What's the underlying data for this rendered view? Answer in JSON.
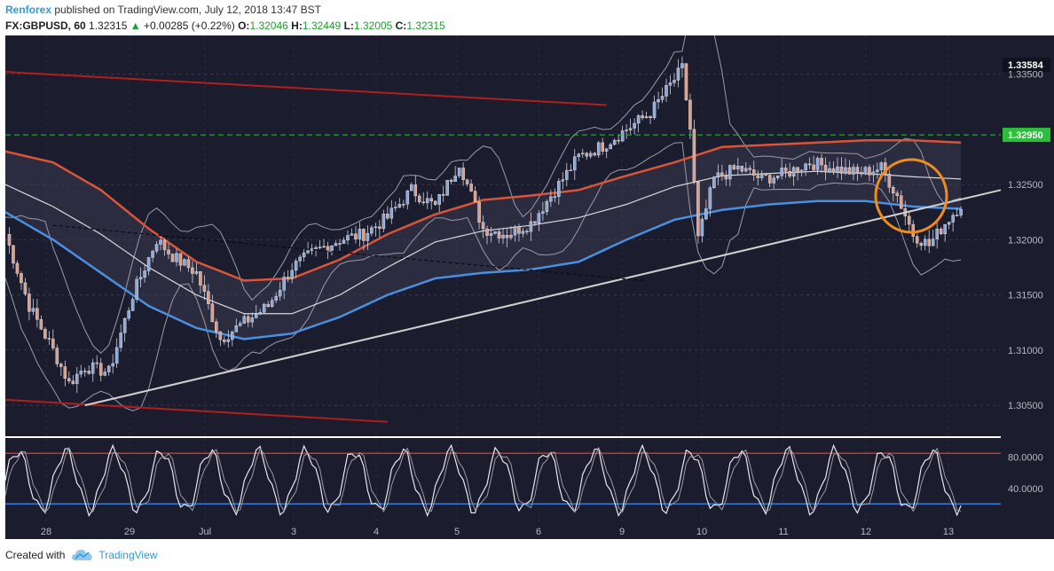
{
  "header": {
    "user": "Renforex",
    "published": "published on TradingView.com, July 12, 2018 13:47 BST",
    "symbol": "FX:GBPUSD, 60",
    "last": "1.32315",
    "change": "+0.00285 (+0.22%)",
    "o_label": "O:",
    "o_value": "1.32046",
    "h_label": "H:",
    "h_value": "1.32449",
    "l_label": "L:",
    "l_value": "1.32005",
    "c_label": "C:",
    "c_value": "1.32315"
  },
  "footer": {
    "created_with": "Created with",
    "brand": "TradingView"
  },
  "colors": {
    "background": "#1b1c2d",
    "bull": "#8ea9d6",
    "bear": "#d9a08c",
    "ma_red": "#d9553a",
    "ma_blue": "#4a8fe0",
    "ma_white": "#d8d8d8",
    "trendline_red": "#b01e1e",
    "support_line": "#d0d0d0",
    "highlight_circle": "#f08c1a",
    "level_green": "#2bbf3a",
    "stoch_upper": "#c0392b",
    "stoch_lower": "#3d7fe0"
  },
  "chart_data": {
    "type": "candlestick",
    "symbol": "FX:GBPUSD",
    "interval": "60",
    "x_tick_labels": [
      "28",
      "29",
      "Jul",
      "3",
      "4",
      "5",
      "6",
      "9",
      "10",
      "11",
      "12",
      "13"
    ],
    "y_tick_labels": [
      "1.33500",
      "1.32500",
      "1.32000",
      "1.31500",
      "1.31000",
      "1.30500"
    ],
    "ylim": [
      1.3022,
      1.3385
    ],
    "price_badges": [
      {
        "label": "1.33584",
        "value": 1.33584,
        "style": "dark"
      },
      {
        "label": "1.32950",
        "value": 1.3295,
        "style": "green"
      }
    ],
    "close_path": [
      [
        0,
        1.3205
      ],
      [
        6,
        1.314
      ],
      [
        12,
        1.31
      ],
      [
        16,
        1.307
      ],
      [
        20,
        1.3085
      ],
      [
        26,
        1.308
      ],
      [
        32,
        1.315
      ],
      [
        38,
        1.32
      ],
      [
        42,
        1.3185
      ],
      [
        48,
        1.317
      ],
      [
        54,
        1.311
      ],
      [
        60,
        1.3125
      ],
      [
        66,
        1.314
      ],
      [
        72,
        1.3175
      ],
      [
        78,
        1.319
      ],
      [
        84,
        1.32
      ],
      [
        90,
        1.3205
      ],
      [
        96,
        1.322
      ],
      [
        102,
        1.3245
      ],
      [
        108,
        1.323
      ],
      [
        114,
        1.327
      ],
      [
        120,
        1.321
      ],
      [
        126,
        1.3205
      ],
      [
        132,
        1.3215
      ],
      [
        138,
        1.3245
      ],
      [
        144,
        1.3275
      ],
      [
        150,
        1.3285
      ],
      [
        156,
        1.33
      ],
      [
        162,
        1.3315
      ],
      [
        168,
        1.3345
      ],
      [
        170,
        1.3355
      ],
      [
        172,
        1.33
      ],
      [
        174,
        1.32
      ],
      [
        178,
        1.3255
      ],
      [
        184,
        1.3265
      ],
      [
        190,
        1.3255
      ],
      [
        196,
        1.326
      ],
      [
        202,
        1.327
      ],
      [
        208,
        1.3265
      ],
      [
        214,
        1.326
      ],
      [
        220,
        1.3265
      ],
      [
        224,
        1.324
      ],
      [
        228,
        1.3205
      ],
      [
        232,
        1.3195
      ],
      [
        236,
        1.3215
      ],
      [
        240,
        1.3232
      ]
    ],
    "moving_averages": {
      "red": [
        [
          0,
          1.328
        ],
        [
          12,
          1.327
        ],
        [
          24,
          1.3245
        ],
        [
          36,
          1.321
        ],
        [
          48,
          1.318
        ],
        [
          60,
          1.3163
        ],
        [
          72,
          1.3165
        ],
        [
          84,
          1.3182
        ],
        [
          96,
          1.3205
        ],
        [
          108,
          1.3223
        ],
        [
          120,
          1.3236
        ],
        [
          132,
          1.324
        ],
        [
          144,
          1.3245
        ],
        [
          156,
          1.3258
        ],
        [
          168,
          1.327
        ],
        [
          180,
          1.3284
        ],
        [
          192,
          1.3286
        ],
        [
          204,
          1.3288
        ],
        [
          216,
          1.329
        ],
        [
          228,
          1.329
        ],
        [
          240,
          1.3288
        ]
      ],
      "white": [
        [
          0,
          1.325
        ],
        [
          12,
          1.323
        ],
        [
          24,
          1.3205
        ],
        [
          36,
          1.3175
        ],
        [
          48,
          1.315
        ],
        [
          60,
          1.3133
        ],
        [
          72,
          1.3133
        ],
        [
          84,
          1.315
        ],
        [
          96,
          1.3175
        ],
        [
          108,
          1.3198
        ],
        [
          120,
          1.3208
        ],
        [
          132,
          1.3213
        ],
        [
          144,
          1.322
        ],
        [
          156,
          1.3232
        ],
        [
          168,
          1.3248
        ],
        [
          180,
          1.3258
        ],
        [
          192,
          1.326
        ],
        [
          204,
          1.3262
        ],
        [
          216,
          1.326
        ],
        [
          228,
          1.3257
        ],
        [
          240,
          1.3255
        ]
      ],
      "blue": [
        [
          0,
          1.3225
        ],
        [
          12,
          1.32
        ],
        [
          24,
          1.317
        ],
        [
          36,
          1.314
        ],
        [
          48,
          1.312
        ],
        [
          60,
          1.311
        ],
        [
          72,
          1.3115
        ],
        [
          84,
          1.313
        ],
        [
          96,
          1.315
        ],
        [
          108,
          1.3165
        ],
        [
          120,
          1.317
        ],
        [
          132,
          1.3173
        ],
        [
          144,
          1.318
        ],
        [
          156,
          1.32
        ],
        [
          168,
          1.3218
        ],
        [
          180,
          1.3227
        ],
        [
          192,
          1.3232
        ],
        [
          204,
          1.3235
        ],
        [
          216,
          1.3235
        ],
        [
          228,
          1.323
        ],
        [
          240,
          1.3228
        ]
      ]
    },
    "trendlines": [
      {
        "color": "red",
        "from": [
          0,
          1.3352
        ],
        "to": [
          151,
          1.3322
        ]
      },
      {
        "color": "red",
        "from": [
          0,
          1.3055
        ],
        "to": [
          96,
          1.3035
        ]
      },
      {
        "color": "white",
        "from": [
          20,
          1.305
        ],
        "to": [
          250,
          1.3245
        ]
      }
    ],
    "oscillator": {
      "type": "stochastic",
      "y_tick_labels": [
        "80.0000",
        "40.0000"
      ],
      "upper_level": 85,
      "lower_level": 20,
      "ylim": [
        0,
        100
      ]
    }
  }
}
